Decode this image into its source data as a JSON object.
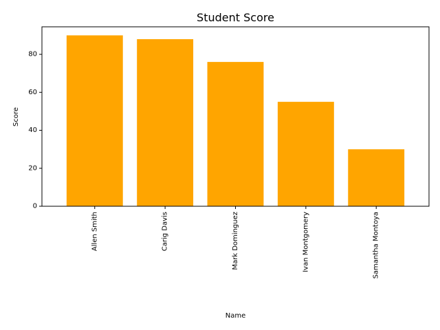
{
  "chart_data": {
    "type": "bar",
    "title": "Student Score",
    "xlabel": "Name",
    "ylabel": "Score",
    "categories": [
      "Allen Smith",
      "Carig Davis",
      "Mark Dominguez",
      "Ivan Montgomery",
      "Samantha Montoya"
    ],
    "values": [
      90,
      88,
      76,
      55,
      30
    ],
    "ylim": [
      0,
      94.5
    ],
    "yticks": [
      0,
      20,
      40,
      60,
      80
    ],
    "bar_color": "#ffa500",
    "grid": false,
    "legend": "none"
  }
}
